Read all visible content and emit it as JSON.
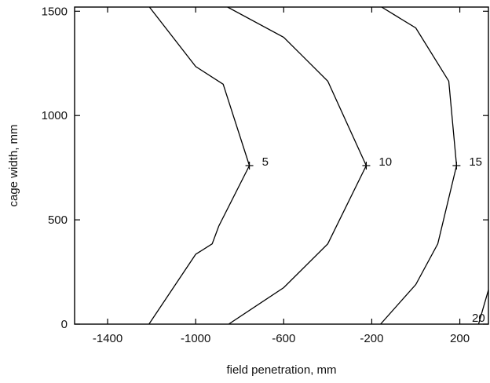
{
  "chart_data": {
    "type": "line",
    "title": "",
    "xlabel": "field penetration, mm",
    "ylabel": "cage width, mm",
    "xlim": [
      -1550,
      330
    ],
    "ylim": [
      0,
      1520
    ],
    "grid": false,
    "xticks": [
      {
        "value": -1400,
        "label": "-1400"
      },
      {
        "value": -1000,
        "label": "-1000"
      },
      {
        "value": -600,
        "label": "-600"
      },
      {
        "value": -200,
        "label": "-200"
      },
      {
        "value": 200,
        "label": "200"
      }
    ],
    "yticks": [
      {
        "value": 0,
        "label": "0"
      },
      {
        "value": 500,
        "label": "500"
      },
      {
        "value": 1000,
        "label": "1000"
      },
      {
        "value": 1500,
        "label": "1500"
      }
    ],
    "series": [
      {
        "label": "5",
        "color": "#000000",
        "marker_point": [
          -756,
          760
        ],
        "points": [
          [
            -1212,
            0
          ],
          [
            -1000,
            335
          ],
          [
            -925,
            385
          ],
          [
            -895,
            470
          ],
          [
            -756,
            760
          ],
          [
            -875,
            1150
          ],
          [
            -1000,
            1235
          ],
          [
            -1210,
            1520
          ]
        ]
      },
      {
        "label": "10",
        "color": "#000000",
        "marker_point": [
          -225,
          760
        ],
        "points": [
          [
            -850,
            0
          ],
          [
            -600,
            175
          ],
          [
            -400,
            385
          ],
          [
            -225,
            760
          ],
          [
            -400,
            1165
          ],
          [
            -600,
            1375
          ],
          [
            -855,
            1520
          ]
        ]
      },
      {
        "label": "15",
        "color": "#000000",
        "marker_point": [
          185,
          760
        ],
        "points": [
          [
            -160,
            0
          ],
          [
            0,
            190
          ],
          [
            100,
            385
          ],
          [
            185,
            760
          ],
          [
            150,
            1165
          ],
          [
            0,
            1420
          ],
          [
            -155,
            1520
          ]
        ]
      },
      {
        "label": "20",
        "color": "#000000",
        "marker_point": null,
        "points": [
          [
            285,
            0
          ],
          [
            340,
            200
          ]
        ]
      }
    ]
  }
}
